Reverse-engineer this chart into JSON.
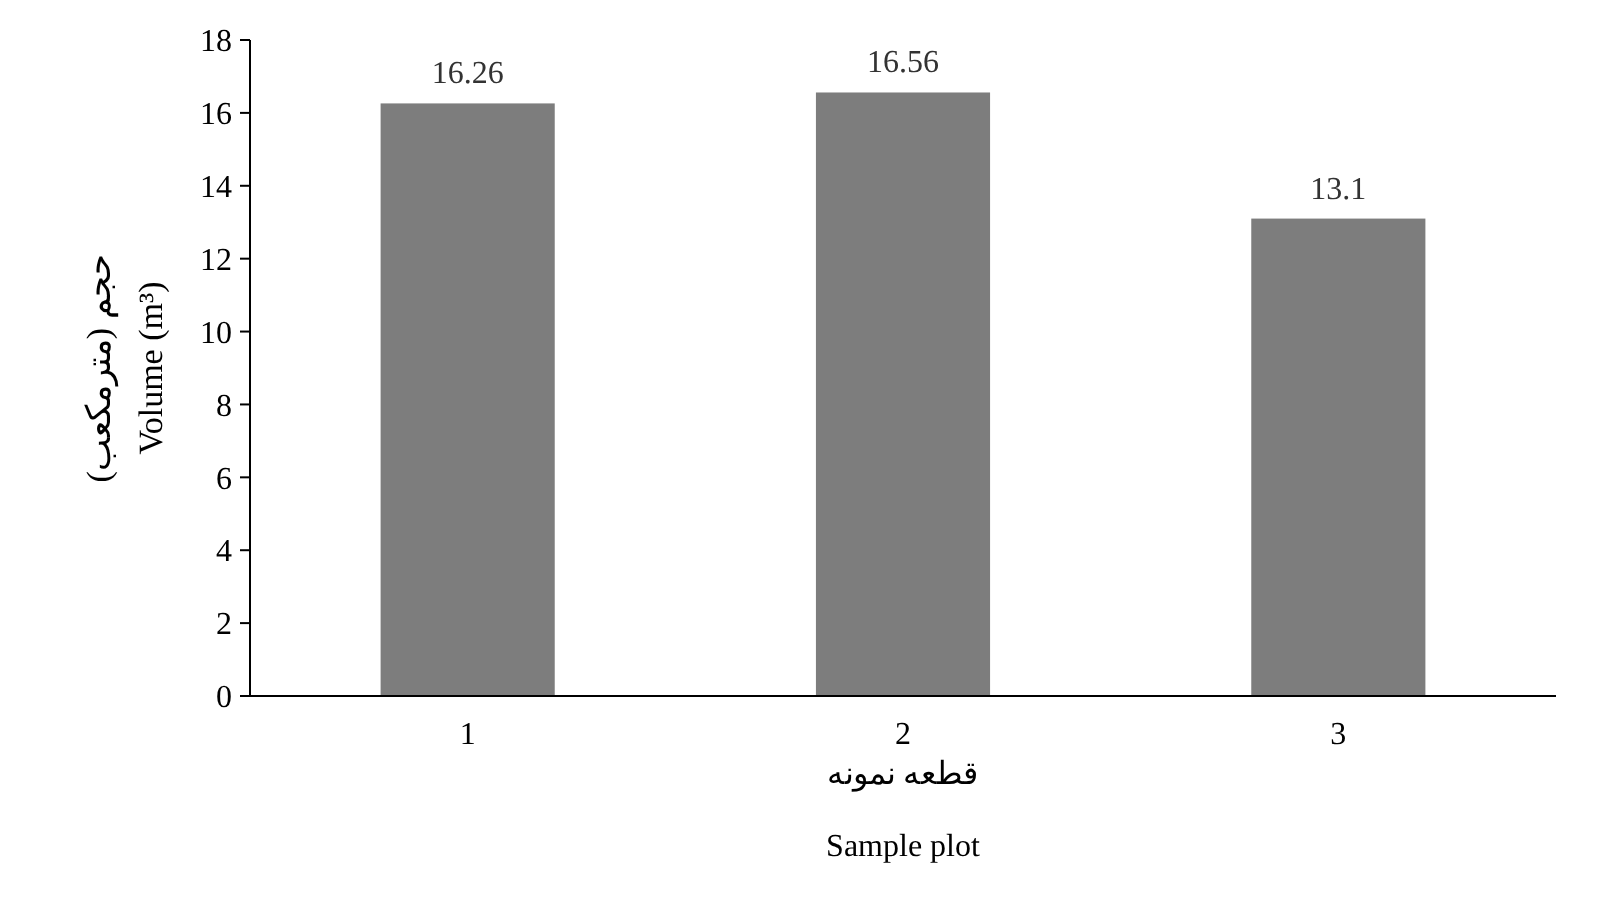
{
  "chart_data": {
    "type": "bar",
    "categories": [
      "1",
      "2",
      "3"
    ],
    "values": [
      16.26,
      16.56,
      13.1
    ],
    "color": "#7d7d7d",
    "ylim": [
      0,
      18
    ],
    "yticks": [
      0,
      2,
      4,
      6,
      8,
      10,
      12,
      14,
      16,
      18
    ],
    "ylabel": "حجم (مترمکعب)\nVolume (m³)",
    "xlabel": "قطعه نمونه\nSample plot",
    "data_labels": true,
    "grid": false
  }
}
